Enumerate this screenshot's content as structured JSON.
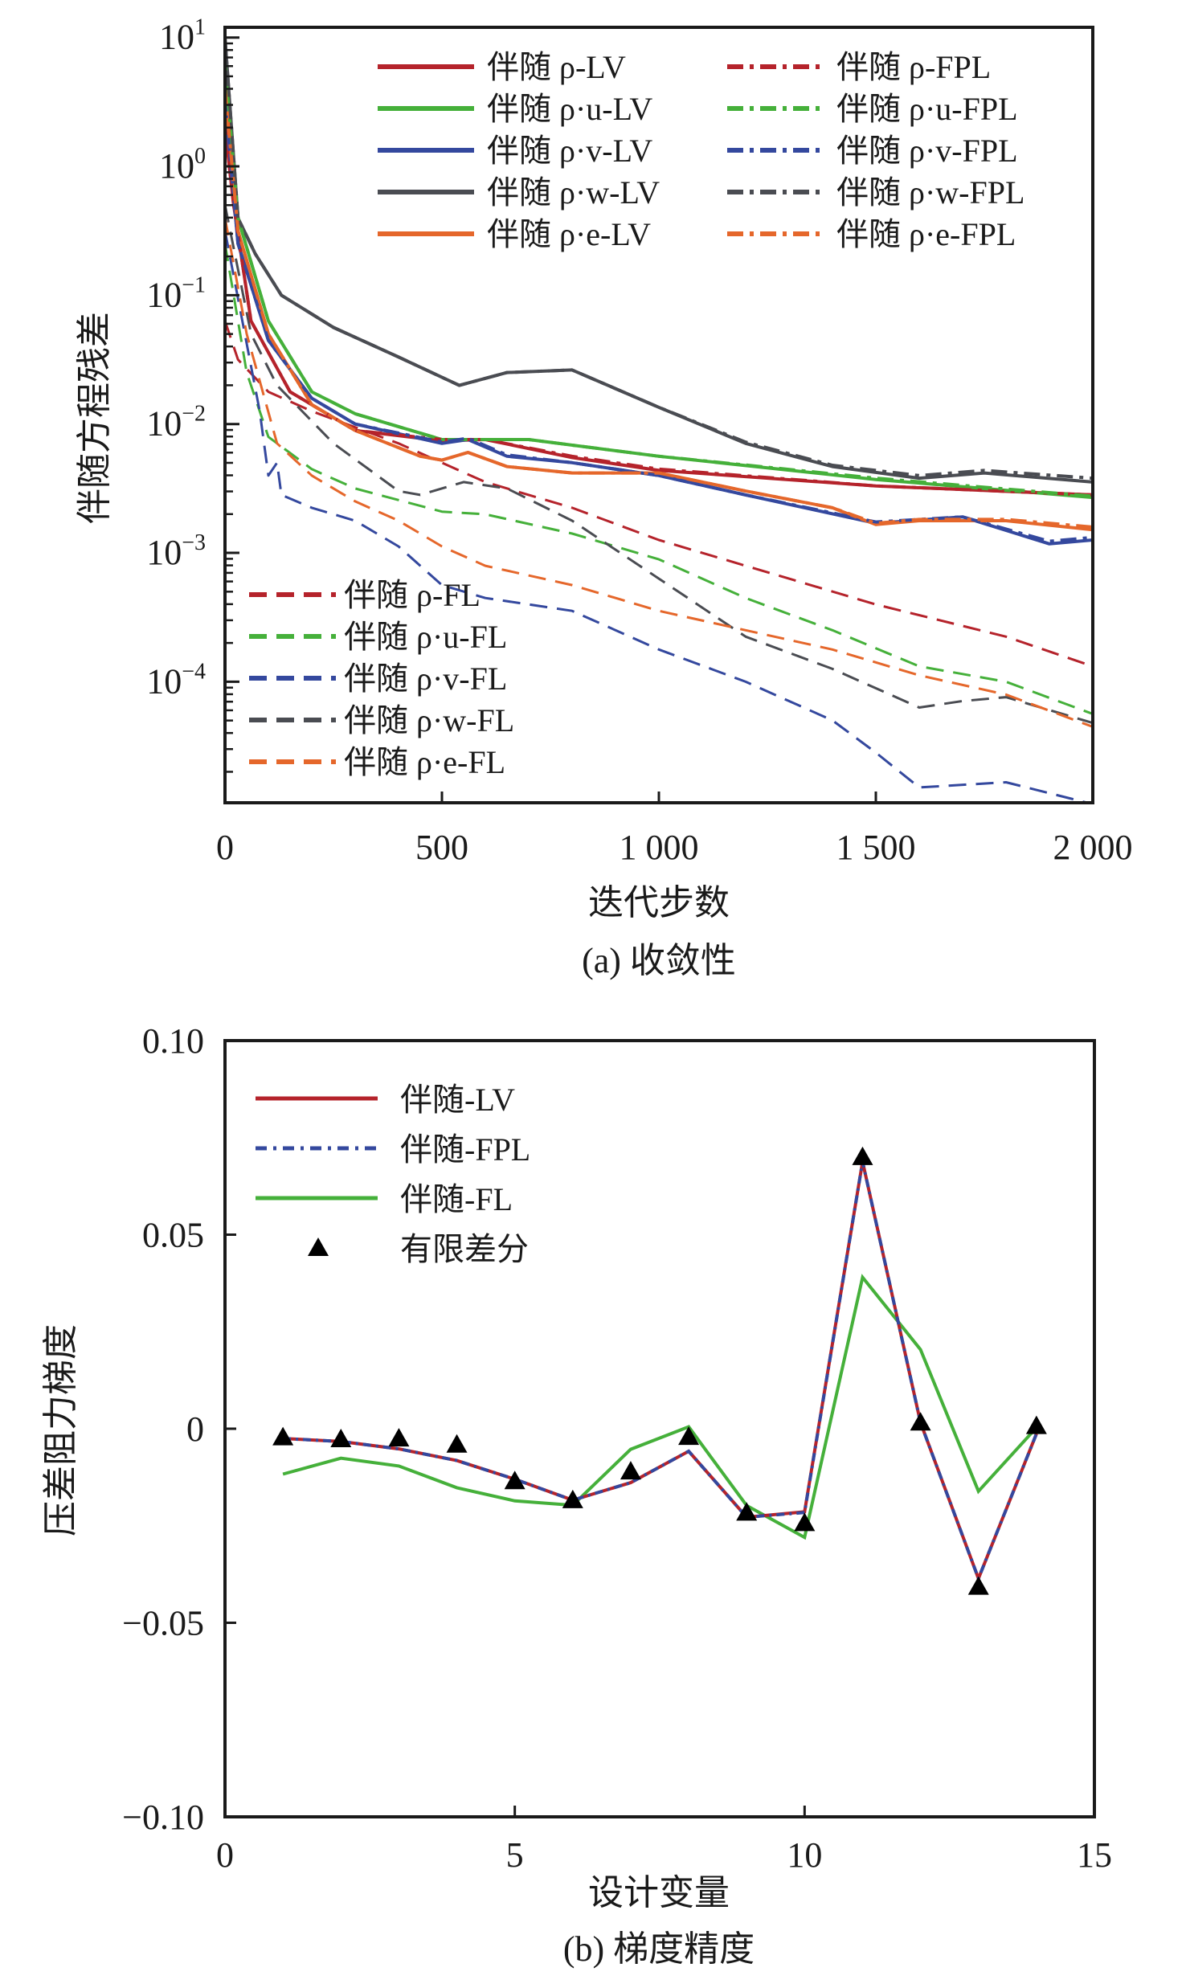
{
  "chart_data": [
    {
      "type": "line",
      "caption": "(a) 收敛性",
      "xlabel": "迭代步数",
      "ylabel": "伴随方程残差",
      "xlim": [
        0,
        2000
      ],
      "ylim": [
        1.15e-05,
        12
      ],
      "yscale": "log",
      "xticks": [
        0,
        500,
        1000,
        1500,
        2000
      ],
      "xtick_labels": [
        "0",
        "500",
        "1 000",
        "1 500",
        "2 000"
      ],
      "ytick_exponents": [
        1,
        0,
        -1,
        -2,
        -3,
        -4
      ],
      "ytick_base": "10",
      "legend_top": {
        "placement": "top-right",
        "columns": 2
      },
      "legend_bottom": {
        "placement": "bottom-left",
        "columns": 1
      },
      "series": [
        {
          "name": "伴随 ρ-LV",
          "color": "#b5232b",
          "style": "solid",
          "legend": "top",
          "x": [
            0,
            20,
            60,
            150,
            300,
            500,
            600,
            800,
            1000,
            1500,
            2000
          ],
          "log10": [
            0.3,
            -0.3,
            -1.2,
            -1.75,
            -2.05,
            -2.13,
            -2.12,
            -2.26,
            -2.36,
            -2.48,
            -2.55
          ]
        },
        {
          "name": "伴随 ρ·u-LV",
          "color": "#45b03a",
          "style": "solid",
          "legend": "top",
          "x": [
            0,
            30,
            100,
            200,
            300,
            500,
            700,
            1000,
            1500,
            2000
          ],
          "log10": [
            0.8,
            -0.4,
            -1.2,
            -1.75,
            -1.92,
            -2.12,
            -2.12,
            -2.25,
            -2.43,
            -2.57
          ]
        },
        {
          "name": "伴随 ρ·v-LV",
          "color": "#34489e",
          "style": "solid",
          "legend": "top",
          "x": [
            0,
            30,
            100,
            200,
            300,
            500,
            560,
            650,
            800,
            1000,
            1200,
            1500,
            1700,
            1900,
            2000
          ],
          "log10": [
            0.5,
            -0.6,
            -1.35,
            -1.8,
            -2.0,
            -2.15,
            -2.12,
            -2.25,
            -2.3,
            -2.4,
            -2.55,
            -2.77,
            -2.72,
            -2.93,
            -2.9
          ]
        },
        {
          "name": "伴随 ρ·w-LV",
          "color": "#4a4c52",
          "style": "solid",
          "legend": "top",
          "x": [
            0,
            30,
            70,
            130,
            250,
            400,
            540,
            650,
            800,
            1000,
            1200,
            1400,
            1600,
            1750,
            2000
          ],
          "log10": [
            1.0,
            -0.4,
            -0.68,
            -1.0,
            -1.25,
            -1.48,
            -1.7,
            -1.6,
            -1.58,
            -1.87,
            -2.15,
            -2.33,
            -2.42,
            -2.38,
            -2.45
          ]
        },
        {
          "name": "伴随 ρ·e-LV",
          "color": "#e5672b",
          "style": "solid",
          "legend": "top",
          "x": [
            0,
            30,
            100,
            200,
            300,
            450,
            500,
            560,
            650,
            800,
            1000,
            1200,
            1400,
            1500,
            1600,
            1800,
            2000
          ],
          "log10": [
            0.6,
            -0.5,
            -1.3,
            -1.85,
            -2.05,
            -2.25,
            -2.28,
            -2.22,
            -2.33,
            -2.38,
            -2.38,
            -2.52,
            -2.65,
            -2.78,
            -2.75,
            -2.75,
            -2.82
          ]
        },
        {
          "name": "伴随 ρ-FPL",
          "color": "#b5232b",
          "style": "dashdot",
          "legend": "top",
          "x": [
            0,
            20,
            60,
            150,
            300,
            500,
            600,
            800,
            1000,
            1500,
            2000
          ],
          "log10": [
            0.3,
            -0.3,
            -1.2,
            -1.75,
            -2.05,
            -2.12,
            -2.12,
            -2.25,
            -2.35,
            -2.48,
            -2.55
          ]
        },
        {
          "name": "伴随 ρ·u-FPL",
          "color": "#45b03a",
          "style": "dashdot",
          "legend": "top",
          "x": [
            0,
            30,
            100,
            200,
            300,
            500,
            700,
            1000,
            1500,
            2000
          ],
          "log10": [
            0.8,
            -0.4,
            -1.2,
            -1.75,
            -1.92,
            -2.12,
            -2.12,
            -2.25,
            -2.42,
            -2.56
          ]
        },
        {
          "name": "伴随 ρ·v-FPL",
          "color": "#34489e",
          "style": "dashdot",
          "legend": "top",
          "x": [
            0,
            30,
            100,
            200,
            300,
            500,
            560,
            650,
            800,
            1000,
            1200,
            1500,
            1700,
            1900,
            2000
          ],
          "log10": [
            0.5,
            -0.6,
            -1.35,
            -1.8,
            -2.0,
            -2.14,
            -2.11,
            -2.24,
            -2.3,
            -2.4,
            -2.55,
            -2.76,
            -2.72,
            -2.91,
            -2.88
          ]
        },
        {
          "name": "伴随 ρ·w-FPL",
          "color": "#4a4c52",
          "style": "dashdot",
          "legend": "top",
          "x": [
            0,
            30,
            70,
            130,
            250,
            400,
            540,
            650,
            800,
            1000,
            1200,
            1400,
            1600,
            1750,
            2000
          ],
          "log10": [
            1.0,
            -0.4,
            -0.68,
            -1.0,
            -1.25,
            -1.48,
            -1.7,
            -1.6,
            -1.58,
            -1.87,
            -2.14,
            -2.32,
            -2.4,
            -2.36,
            -2.42
          ]
        },
        {
          "name": "伴随 ρ·e-FPL",
          "color": "#e5672b",
          "style": "dashdot",
          "legend": "top",
          "x": [
            0,
            30,
            100,
            200,
            300,
            450,
            500,
            560,
            650,
            800,
            1000,
            1200,
            1400,
            1500,
            1600,
            1800,
            2000
          ],
          "log10": [
            0.6,
            -0.5,
            -1.3,
            -1.85,
            -2.05,
            -2.25,
            -2.28,
            -2.22,
            -2.33,
            -2.38,
            -2.38,
            -2.52,
            -2.65,
            -2.77,
            -2.74,
            -2.74,
            -2.8
          ]
        },
        {
          "name": "伴随 ρ-FL",
          "color": "#b5232b",
          "style": "dashed",
          "legend": "bottom",
          "x": [
            0,
            30,
            100,
            200,
            400,
            600,
            800,
            1000,
            1200,
            1500,
            1800,
            2000
          ],
          "log10": [
            -1.2,
            -1.5,
            -1.75,
            -1.9,
            -2.15,
            -2.45,
            -2.65,
            -2.9,
            -3.1,
            -3.4,
            -3.65,
            -3.88
          ]
        },
        {
          "name": "伴随 ρ·u-FL",
          "color": "#45b03a",
          "style": "dashed",
          "legend": "bottom",
          "x": [
            0,
            50,
            100,
            200,
            300,
            500,
            600,
            800,
            1000,
            1200,
            1400,
            1600,
            1800,
            2000
          ],
          "log10": [
            -0.6,
            -1.6,
            -2.1,
            -2.35,
            -2.5,
            -2.68,
            -2.7,
            -2.85,
            -3.05,
            -3.35,
            -3.6,
            -3.88,
            -4.0,
            -4.25
          ]
        },
        {
          "name": "伴随 ρ·v-FL",
          "color": "#34489e",
          "style": "dashed",
          "legend": "bottom",
          "x": [
            0,
            80,
            100,
            120,
            130,
            200,
            300,
            400,
            500,
            600,
            800,
            1000,
            1200,
            1400,
            1500,
            1600,
            1800,
            2000
          ],
          "log10": [
            -0.5,
            -1.9,
            -2.4,
            -2.3,
            -2.55,
            -2.65,
            -2.75,
            -2.95,
            -3.25,
            -3.35,
            -3.45,
            -3.75,
            -4.0,
            -4.3,
            -4.55,
            -4.82,
            -4.78,
            -4.95
          ]
        },
        {
          "name": "伴随 ρ·w-FL",
          "color": "#4a4c52",
          "style": "dashed",
          "legend": "bottom",
          "x": [
            0,
            60,
            120,
            250,
            400,
            450,
            550,
            650,
            800,
            1000,
            1200,
            1400,
            1600,
            1700,
            1800,
            2000
          ],
          "log10": [
            -0.3,
            -1.3,
            -1.7,
            -2.15,
            -2.52,
            -2.55,
            -2.45,
            -2.5,
            -2.75,
            -3.2,
            -3.65,
            -3.9,
            -4.2,
            -4.15,
            -4.12,
            -4.32
          ]
        },
        {
          "name": "伴随 ρ·e-FL",
          "color": "#e5672b",
          "style": "dashed",
          "legend": "bottom",
          "x": [
            0,
            50,
            120,
            200,
            300,
            400,
            500,
            600,
            800,
            1000,
            1200,
            1400,
            1600,
            1800,
            2000
          ],
          "log10": [
            -0.4,
            -1.3,
            -2.15,
            -2.4,
            -2.6,
            -2.75,
            -2.95,
            -3.1,
            -3.25,
            -3.45,
            -3.6,
            -3.75,
            -3.95,
            -4.1,
            -4.35
          ]
        }
      ]
    },
    {
      "type": "line",
      "caption": "(b) 梯度精度",
      "xlabel": "设计变量",
      "ylabel": "压差阻力梯度",
      "xlim": [
        0,
        15
      ],
      "ylim": [
        -0.1,
        0.1
      ],
      "xticks": [
        0,
        5,
        10,
        15
      ],
      "xtick_labels": [
        "0",
        "5",
        "10",
        "15"
      ],
      "yticks": [
        0.1,
        0.05,
        0,
        -0.05,
        -0.1
      ],
      "ytick_labels": [
        "0.10",
        "0.05",
        "0",
        "−0.05",
        "−0.10"
      ],
      "legend": {
        "placement": "top-left"
      },
      "x": [
        1,
        2,
        3,
        4,
        5,
        6,
        7,
        8,
        9,
        10,
        11,
        12,
        13,
        14
      ],
      "series": [
        {
          "name": "伴随-LV",
          "color": "#b5232b",
          "style": "solid",
          "values": [
            -0.0025,
            -0.0033,
            -0.0052,
            -0.0082,
            -0.013,
            -0.0184,
            -0.0139,
            -0.0058,
            -0.0228,
            -0.0214,
            0.0688,
            0.0016,
            -0.0386,
            -0.0013
          ]
        },
        {
          "name": "伴随-FPL",
          "color": "#34489e",
          "style": "dashdot",
          "values": [
            -0.0025,
            -0.0033,
            -0.0052,
            -0.0082,
            -0.013,
            -0.0184,
            -0.0139,
            -0.0058,
            -0.0228,
            -0.0216,
            0.0688,
            0.0016,
            -0.0386,
            -0.0013
          ]
        },
        {
          "name": "伴随-FL",
          "color": "#45b03a",
          "style": "solid",
          "values": [
            -0.0117,
            -0.0076,
            -0.0096,
            -0.0152,
            -0.0186,
            -0.0197,
            -0.0053,
            0.0005,
            -0.0198,
            -0.028,
            0.039,
            0.0204,
            -0.0161,
            0.0003
          ]
        },
        {
          "name": "有限差分",
          "color": "#000000",
          "style": "marker-triangle",
          "values": [
            -0.0022,
            -0.0027,
            -0.0025,
            -0.0041,
            -0.0135,
            -0.0184,
            -0.011,
            -0.0021,
            -0.0216,
            -0.0243,
            0.07,
            0.0016,
            -0.0407,
            0.0007
          ]
        }
      ]
    }
  ]
}
